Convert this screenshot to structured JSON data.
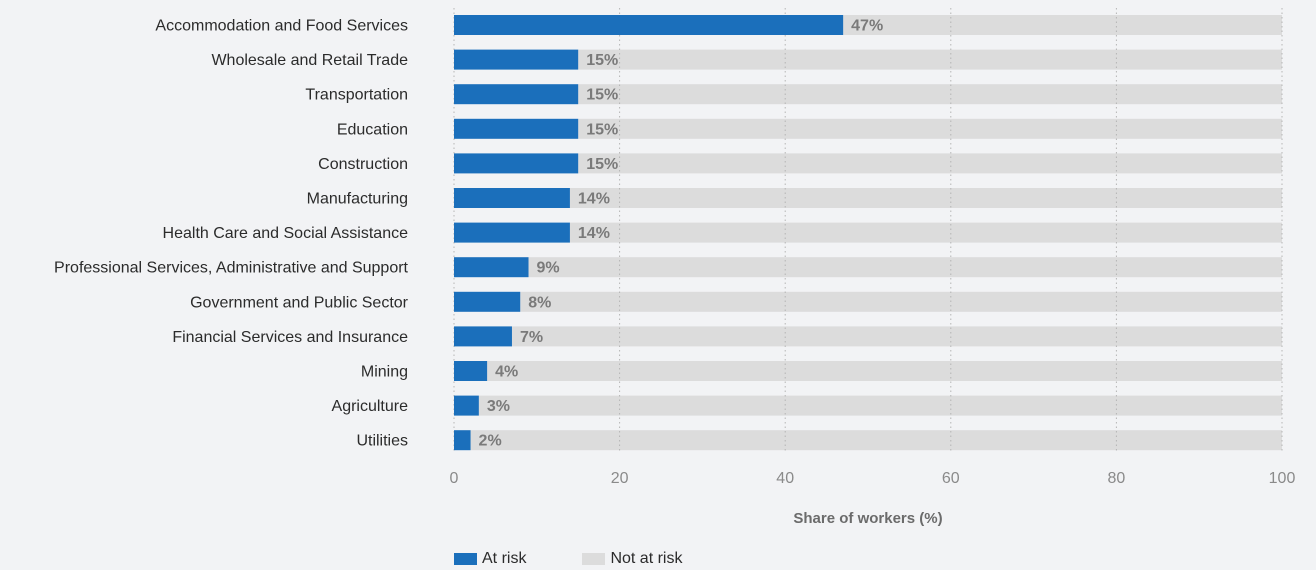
{
  "chart_data": {
    "type": "bar",
    "orientation": "horizontal",
    "stacked_to_100": true,
    "categories": [
      "Accommodation and Food Services",
      "Wholesale and Retail Trade",
      "Transportation",
      "Education",
      "Construction",
      "Manufacturing",
      "Health Care and Social Assistance",
      "Professional Services, Administrative and Support",
      "Government and Public Sector",
      "Financial Services and Insurance",
      "Mining",
      "Agriculture",
      "Utilities"
    ],
    "series": [
      {
        "name": "At risk",
        "values": [
          47,
          15,
          15,
          15,
          15,
          14,
          14,
          9,
          8,
          7,
          4,
          3,
          2
        ]
      },
      {
        "name": "Not at risk",
        "values": [
          53,
          85,
          85,
          85,
          85,
          86,
          86,
          91,
          92,
          93,
          96,
          97,
          98
        ]
      }
    ],
    "data_labels": [
      "47%",
      "15%",
      "15%",
      "15%",
      "15%",
      "14%",
      "14%",
      "9%",
      "8%",
      "7%",
      "4%",
      "3%",
      "2%"
    ],
    "xlabel": "Share of workers (%)",
    "ylabel": "",
    "xlim": [
      0,
      100
    ],
    "xticks": [
      0,
      20,
      40,
      60,
      80,
      100
    ],
    "grid": true,
    "legend_position": "bottom",
    "colors": {
      "at_risk": "#1b6fbb",
      "not_at_risk": "#dcdcdc",
      "grid": "#b5b5b5",
      "background": "#f2f3f5"
    }
  },
  "legend": {
    "at_risk": "At risk",
    "not_at_risk": "Not at risk"
  }
}
